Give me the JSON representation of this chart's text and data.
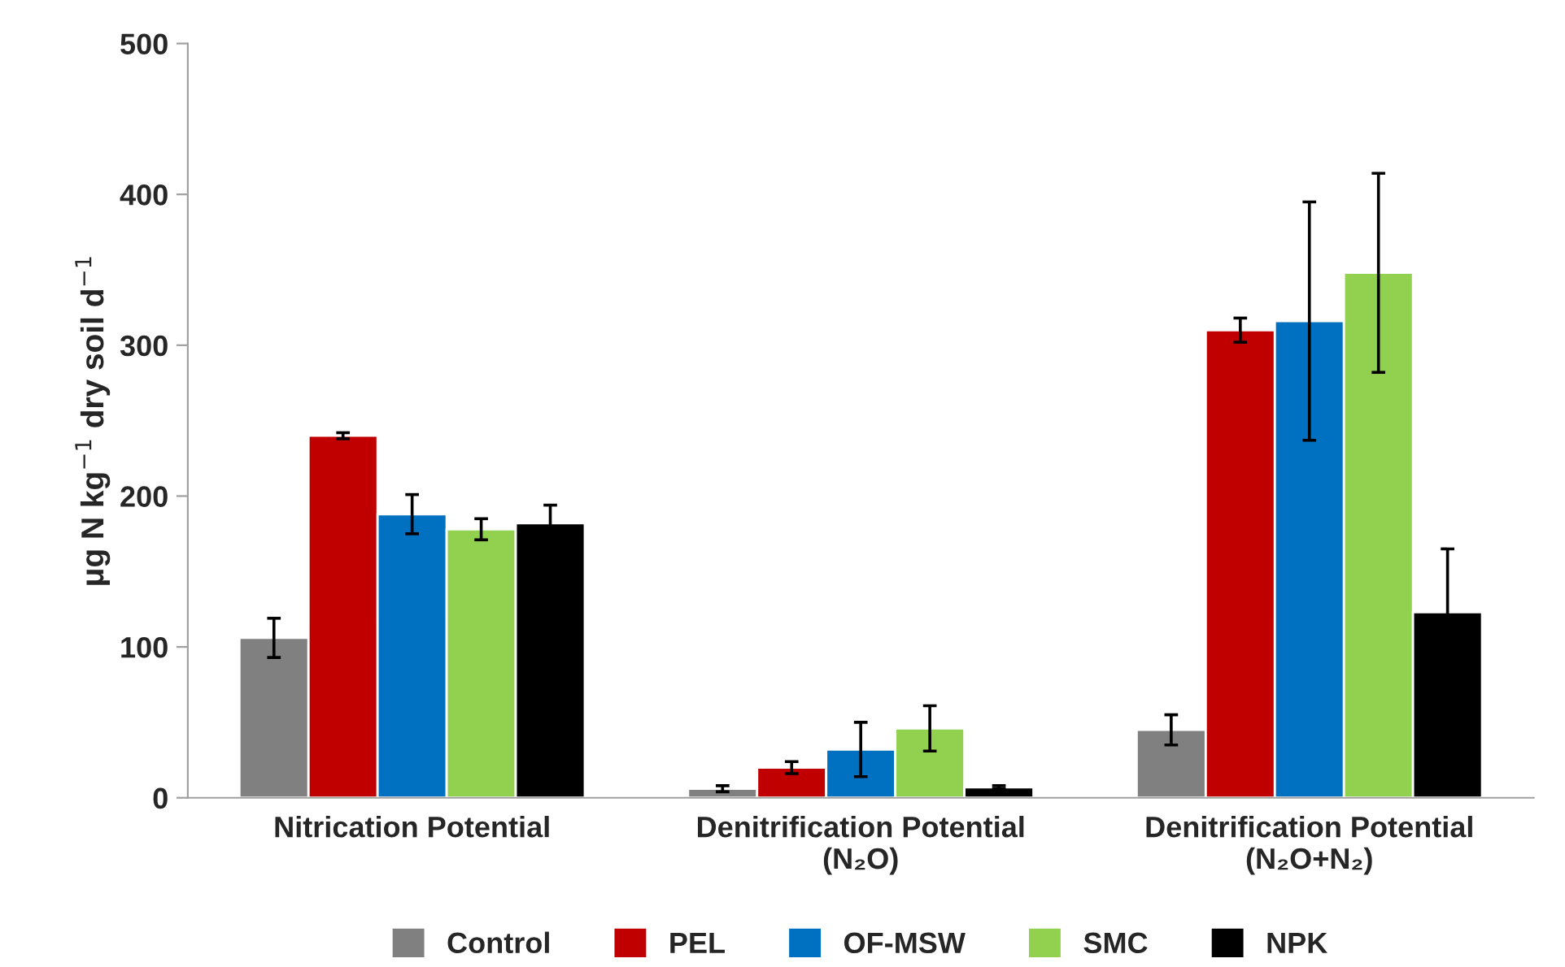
{
  "chart_data": {
    "type": "bar",
    "ylabel": "μg N kg$^{−1}$ dry soil d$^{−1}$",
    "categories": [
      "Nitrication Potential",
      "Denitrification Potential\n(N₂O)",
      "Denitrification Potential\n(N₂O+N₂)"
    ],
    "series": [
      {
        "name": "Control",
        "color": "#808080",
        "values": [
          106,
          6,
          45
        ],
        "errors": [
          13,
          2,
          10
        ]
      },
      {
        "name": "PEL",
        "color": "#c00000",
        "values": [
          240,
          20,
          310
        ],
        "errors": [
          2,
          4,
          8
        ]
      },
      {
        "name": "OF-MSW",
        "color": "#0070c0",
        "values": [
          188,
          32,
          316
        ],
        "errors": [
          13,
          18,
          79
        ]
      },
      {
        "name": "SMC",
        "color": "#92d050",
        "values": [
          178,
          46,
          348
        ],
        "errors": [
          7,
          15,
          66
        ]
      },
      {
        "name": "NPK",
        "color": "#000000",
        "values": [
          182,
          7,
          123
        ],
        "errors": [
          12,
          1,
          42
        ]
      }
    ],
    "ylim": [
      0,
      500
    ],
    "yticks": [
      0,
      100,
      200,
      300,
      400,
      500
    ],
    "grid": false,
    "legend": "bottom"
  }
}
